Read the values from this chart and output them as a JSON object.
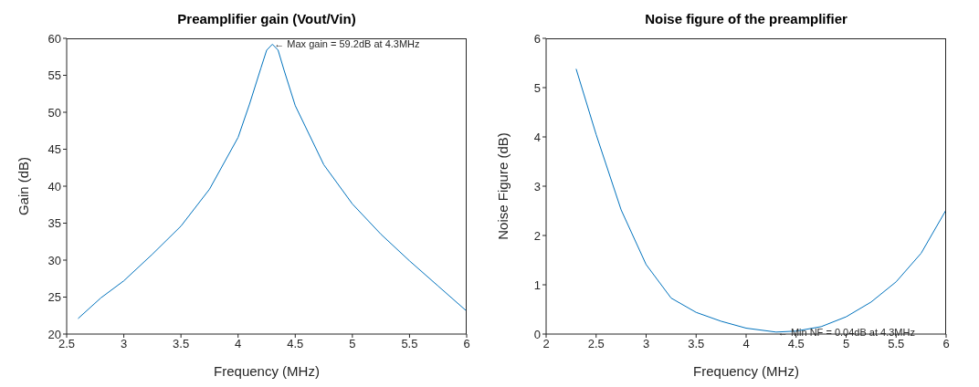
{
  "chart_data": [
    {
      "type": "line",
      "title": "Preamplifier gain (Vout/Vin)",
      "xlabel": "Frequency (MHz)",
      "ylabel": "Gain (dB)",
      "x": [
        2.6,
        2.8,
        3.0,
        3.25,
        3.5,
        3.75,
        4.0,
        4.1,
        4.2,
        4.25,
        4.3,
        4.35,
        4.4,
        4.5,
        4.75,
        5.0,
        5.25,
        5.5,
        5.75,
        6.0
      ],
      "series": [
        {
          "color": "#0072bd",
          "values": [
            22.1,
            24.9,
            27.2,
            30.8,
            34.6,
            39.6,
            46.6,
            51.1,
            56.0,
            58.4,
            59.2,
            58.4,
            55.8,
            50.9,
            42.9,
            37.6,
            33.5,
            29.9,
            26.5,
            23.1
          ]
        }
      ],
      "xlim": [
        2.5,
        6
      ],
      "xticks": [
        2.5,
        3,
        3.5,
        4,
        4.5,
        5,
        5.5,
        6
      ],
      "ylim": [
        20,
        60
      ],
      "yticks": [
        20,
        25,
        30,
        35,
        40,
        45,
        50,
        55,
        60
      ],
      "annotations": [
        {
          "text": "← Max gain = 59.2dB at 4.3MHz",
          "x": 4.3,
          "y": 59.2
        }
      ]
    },
    {
      "type": "line",
      "title": "Noise figure of the preamplifier",
      "xlabel": "Frequency (MHz)",
      "ylabel": "Noise Figure (dB)",
      "x": [
        2.3,
        2.5,
        2.75,
        3.0,
        3.25,
        3.5,
        3.75,
        4.0,
        4.3,
        4.5,
        4.75,
        5.0,
        5.25,
        5.5,
        5.75,
        6.0
      ],
      "series": [
        {
          "color": "#0072bd",
          "values": [
            5.38,
            4.05,
            2.52,
            1.41,
            0.73,
            0.44,
            0.26,
            0.12,
            0.04,
            0.06,
            0.15,
            0.35,
            0.65,
            1.06,
            1.64,
            2.52
          ]
        }
      ],
      "xlim": [
        2,
        6
      ],
      "xticks": [
        2,
        2.5,
        3,
        3.5,
        4,
        4.5,
        5,
        5.5,
        6
      ],
      "ylim": [
        0,
        6
      ],
      "yticks": [
        0,
        1,
        2,
        3,
        4,
        5,
        6
      ],
      "annotations": [
        {
          "text": "← Min NF = 0.04dB at 4.3MHz",
          "x": 4.3,
          "y": 0.04
        }
      ]
    }
  ]
}
